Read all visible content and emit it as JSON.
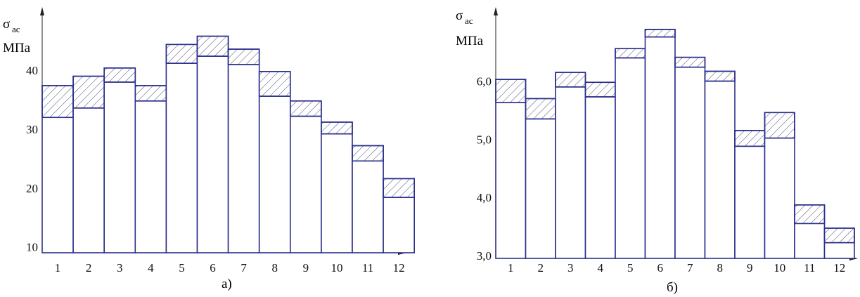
{
  "chart_data": [
    {
      "type": "bar",
      "caption": "а)",
      "ylabel_symbol": "σ",
      "ylabel_sub": "ас",
      "yunit": "МПа",
      "categories": [
        "1",
        "2",
        "3",
        "4",
        "5",
        "6",
        "7",
        "8",
        "9",
        "10",
        "11",
        "12"
      ],
      "yticks": [
        "10",
        "20",
        "30",
        "40"
      ],
      "ylim": [
        9,
        51
      ],
      "series": [
        {
          "values": [
            32.0,
            33.6,
            38.0,
            34.8,
            41.2,
            42.4,
            41.0,
            35.6,
            32.2,
            29.2,
            24.6,
            18.4
          ]
        },
        {
          "values": [
            37.4,
            39.0,
            40.4,
            37.4,
            44.4,
            45.8,
            43.6,
            39.8,
            34.8,
            31.2,
            27.2,
            21.6
          ]
        }
      ]
    },
    {
      "type": "bar",
      "caption": "б)",
      "ylabel_symbol": "σ",
      "ylabel_sub": "ас",
      "yunit": "МПа",
      "categories": [
        "1",
        "2",
        "3",
        "4",
        "5",
        "6",
        "7",
        "8",
        "9",
        "10",
        "11",
        "12"
      ],
      "yticks": [
        "3,0",
        "4,0",
        "5,0",
        "6,0"
      ],
      "ylim": [
        2.95,
        7.3
      ],
      "series": [
        {
          "values": [
            5.63,
            5.35,
            5.9,
            5.73,
            6.4,
            6.76,
            6.24,
            6.0,
            4.88,
            5.02,
            3.55,
            3.22
          ]
        },
        {
          "values": [
            6.03,
            5.7,
            6.15,
            5.98,
            6.56,
            6.89,
            6.41,
            6.17,
            5.15,
            5.46,
            3.87,
            3.47
          ]
        }
      ]
    }
  ]
}
